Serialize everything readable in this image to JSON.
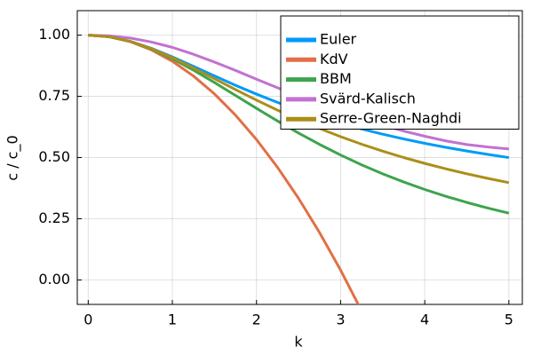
{
  "chart_data": {
    "type": "line",
    "x_label": "k",
    "y_label": "c / c_0",
    "x": [
      0,
      0.25,
      0.5,
      0.75,
      1,
      1.25,
      1.5,
      1.75,
      2,
      2.25,
      2.5,
      2.75,
      3,
      3.25,
      3.5,
      3.75,
      4,
      4.25,
      4.5,
      4.75,
      5
    ],
    "series": [
      {
        "name": "Euler",
        "color": "#009af9",
        "values": [
          1,
          0.9934,
          0.9746,
          0.9461,
          0.911,
          0.8727,
          0.8335,
          0.7952,
          0.759,
          0.7253,
          0.6943,
          0.666,
          0.6402,
          0.6168,
          0.5954,
          0.5759,
          0.5581,
          0.5417,
          0.5267,
          0.5127,
          0.4998
        ]
      },
      {
        "name": "KdV",
        "color": "#e26f46",
        "values": [
          1,
          0.9933,
          0.9733,
          0.94,
          0.8933,
          0.8333,
          0.76,
          0.6733,
          0.5733,
          0.46,
          0.3333,
          0.1933,
          0.04,
          -0.1267,
          null,
          null,
          null,
          null,
          null,
          null,
          null
        ]
      },
      {
        "name": "BBM",
        "color": "#3da44d",
        "values": [
          1,
          0.9934,
          0.974,
          0.9434,
          0.9036,
          0.8571,
          0.8065,
          0.7538,
          0.7009,
          0.6494,
          0.6,
          0.5535,
          0.5102,
          0.4702,
          0.4335,
          0.4,
          0.3695,
          0.3417,
          0.3165,
          0.2935,
          0.2727
        ]
      },
      {
        "name": "Svärd-Kalisch",
        "color": "#c271d2",
        "values": [
          1,
          0.997,
          0.988,
          0.972,
          0.95,
          0.922,
          0.89,
          0.856,
          0.82,
          0.785,
          0.75,
          0.717,
          0.686,
          0.658,
          0.632,
          0.608,
          0.587,
          0.568,
          0.553,
          0.543,
          0.535
        ]
      },
      {
        "name": "Serre-Green-Naghdi",
        "color": "#ac8e18",
        "values": [
          1,
          0.9934,
          0.9744,
          0.9449,
          0.9078,
          0.866,
          0.822,
          0.7777,
          0.7346,
          0.6934,
          0.6547,
          0.6186,
          0.5852,
          0.5544,
          0.5261,
          0.5,
          0.476,
          0.4539,
          0.4336,
          0.4148,
          0.3974
        ]
      }
    ],
    "xlim": [
      -0.13,
      5.16
    ],
    "ylim": [
      -0.1,
      1.1
    ],
    "xticks": [
      0,
      1,
      2,
      3,
      4,
      5
    ],
    "yticks": [
      {
        "value": 0,
        "label": "0.00"
      },
      {
        "value": 0.25,
        "label": "0.25"
      },
      {
        "value": 0.5,
        "label": "0.50"
      },
      {
        "value": 0.75,
        "label": "0.75"
      },
      {
        "value": 1,
        "label": "1.00"
      }
    ],
    "grid": true,
    "legend": "upper right"
  }
}
